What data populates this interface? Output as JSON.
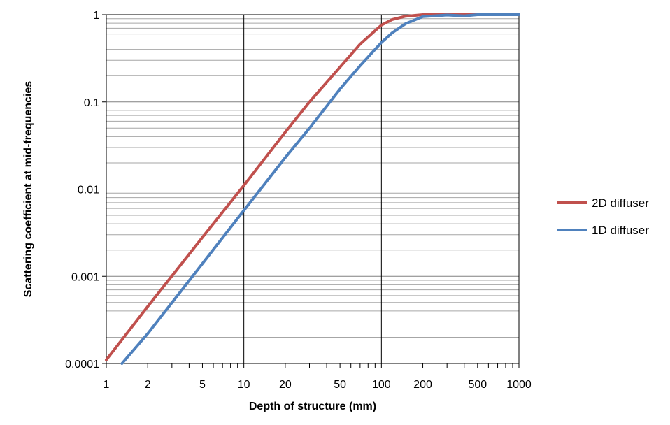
{
  "chart_data": {
    "type": "line",
    "xlabel": "Depth of structure (mm)",
    "ylabel": "Scattering coefficient at mid-frequencies",
    "xscale": "log",
    "yscale": "log",
    "xlim": [
      1,
      1000
    ],
    "ylim": [
      0.0001,
      1
    ],
    "x_ticks": [
      1,
      2,
      5,
      10,
      20,
      50,
      100,
      200,
      500,
      1000
    ],
    "x_tick_labels": [
      "1",
      "2",
      "5",
      "10",
      "20",
      "50",
      "100",
      "200",
      "500",
      "1000"
    ],
    "y_ticks": [
      0.0001,
      0.001,
      0.01,
      0.1,
      1
    ],
    "y_tick_labels": [
      "0.0001",
      "0.001",
      "0.01",
      "0.1",
      "1"
    ],
    "grid": "major and minor horizontal; major vertical",
    "legend_position": "right",
    "series": [
      {
        "name": "2D diffuser",
        "color": "#c0504d",
        "x": [
          1,
          2,
          5,
          10,
          20,
          30,
          50,
          70,
          100,
          120,
          150,
          200,
          300,
          500,
          1000
        ],
        "y": [
          0.00011,
          0.00045,
          0.0028,
          0.011,
          0.045,
          0.1,
          0.25,
          0.46,
          0.76,
          0.88,
          0.96,
          1.0,
          1.0,
          1.0,
          1.0
        ]
      },
      {
        "name": "1D diffuser",
        "color": "#4f81bd",
        "x": [
          1.3,
          2,
          5,
          10,
          20,
          30,
          50,
          70,
          100,
          120,
          150,
          200,
          300,
          400,
          500,
          1000
        ],
        "y": [
          0.0001,
          0.00022,
          0.0014,
          0.0057,
          0.023,
          0.05,
          0.14,
          0.26,
          0.48,
          0.62,
          0.79,
          0.95,
          0.99,
          0.97,
          1.0,
          1.0
        ]
      }
    ]
  }
}
